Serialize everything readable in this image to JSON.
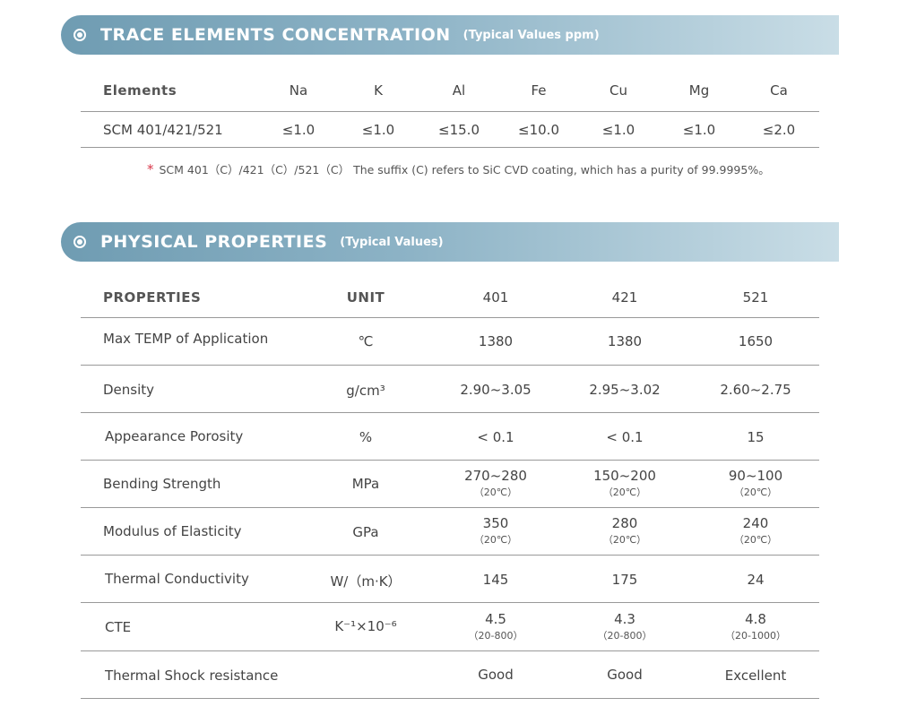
{
  "trace": {
    "title": "TRACE ELEMENTS CONCENTRATION",
    "subtitle": "(Typical Values ppm)",
    "headers": [
      "Elements",
      "Na",
      "K",
      "Al",
      "Fe",
      "Cu",
      "Mg",
      "Ca"
    ],
    "row": [
      "SCM 401/421/521",
      "≤1.0",
      "≤1.0",
      "≤15.0",
      "≤10.0",
      "≤1.0",
      "≤1.0",
      "≤2.0"
    ],
    "note_star": "*",
    "note": "SCM 401（C）/421（C）/521（C）  The suffix (C) refers to SiC CVD coating, which has a purity of 99.9995%。"
  },
  "physical": {
    "title": "PHYSICAL PROPERTIES",
    "subtitle": "(Typical Values)",
    "headers": [
      "PROPERTIES",
      "UNIT",
      "401",
      "421",
      "521"
    ],
    "rows": [
      {
        "name": "Max TEMP of Application",
        "unit": "℃",
        "v401": "1380",
        "s401": "",
        "v421": "1380",
        "s421": "",
        "v521": "1650",
        "s521": ""
      },
      {
        "name": "Density",
        "unit": "g/cm³",
        "v401": "2.90~3.05",
        "s401": "",
        "v421": "2.95~3.02",
        "s421": "",
        "v521": "2.60~2.75",
        "s521": ""
      },
      {
        "name": "Appearance Porosity",
        "unit": "%",
        "v401": "< 0.1",
        "s401": "",
        "v421": "< 0.1",
        "s421": "",
        "v521": "15",
        "s521": ""
      },
      {
        "name": "Bending Strength",
        "unit": "MPa",
        "v401": "270~280",
        "s401": "（20℃）",
        "v421": "150~200",
        "s421": "（20℃）",
        "v521": "90~100",
        "s521": "（20℃）"
      },
      {
        "name": "Modulus of Elasticity",
        "unit": "GPa",
        "v401": "350",
        "s401": "（20℃）",
        "v421": "280",
        "s421": "（20℃）",
        "v521": "240",
        "s521": "（20℃）"
      },
      {
        "name": "Thermal Conductivity",
        "unit": "W/（m·K）",
        "v401": "145",
        "s401": "",
        "v421": "175",
        "s421": "",
        "v521": "24",
        "s521": ""
      },
      {
        "name": "CTE",
        "unit": "K⁻¹×10⁻⁶",
        "v401": "4.5",
        "s401": "（20-800）",
        "v421": "4.3",
        "s421": "（20-800）",
        "v521": "4.8",
        "s521": "（20-1000）"
      },
      {
        "name": "Thermal Shock resistance",
        "unit": "",
        "v401": "Good",
        "s401": "",
        "v421": "Good",
        "s421": "",
        "v521": "Excellent",
        "s521": ""
      }
    ]
  }
}
